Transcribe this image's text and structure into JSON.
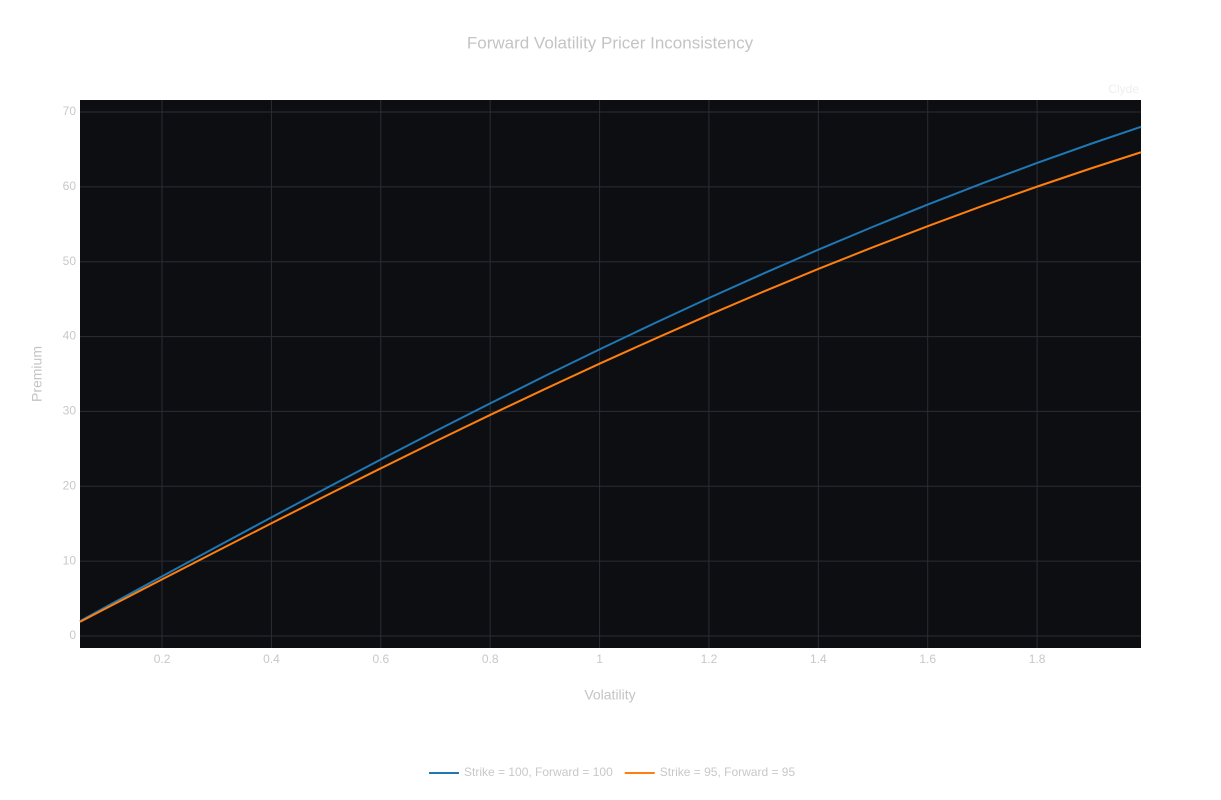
{
  "chart_data": {
    "type": "line",
    "title": "Forward Volatility Pricer Inconsistency",
    "watermark": "Clyde",
    "x_label": "Volatility",
    "y_label": "Premium",
    "x": [
      0.05,
      0.1,
      0.2,
      0.3,
      0.4,
      0.5,
      0.6,
      0.7,
      0.8,
      0.9,
      1.0,
      1.1,
      1.2,
      1.3,
      1.4,
      1.5,
      1.6,
      1.7,
      1.8,
      1.9,
      1.99
    ],
    "series": [
      {
        "name": "Strike = 100, Forward = 100",
        "color": "#1f77b4",
        "values": [
          1.99,
          3.99,
          7.97,
          11.92,
          15.85,
          19.74,
          23.58,
          27.37,
          31.08,
          34.73,
          38.29,
          41.76,
          45.15,
          48.43,
          51.61,
          54.67,
          57.63,
          60.47,
          63.19,
          65.79,
          68.02
        ]
      },
      {
        "name": "Strike = 95, Forward = 95",
        "color": "#ff7f0e",
        "values": [
          1.89,
          3.79,
          7.57,
          11.32,
          15.06,
          18.75,
          22.4,
          26.0,
          29.53,
          32.99,
          36.38,
          39.67,
          42.89,
          46.01,
          49.03,
          51.94,
          54.75,
          57.45,
          60.03,
          62.5,
          64.62
        ]
      }
    ],
    "xlim": [
      0.05,
      1.99
    ],
    "ylim": [
      -1.6,
      71.6
    ],
    "xticks": [
      0.2,
      0.4,
      0.6,
      0.8,
      1,
      1.2,
      1.4,
      1.6,
      1.8
    ],
    "yticks": [
      0,
      10,
      20,
      30,
      40,
      50,
      60,
      70
    ],
    "grid": true,
    "plot_background": "#0d0e12",
    "legend": "bottom"
  }
}
